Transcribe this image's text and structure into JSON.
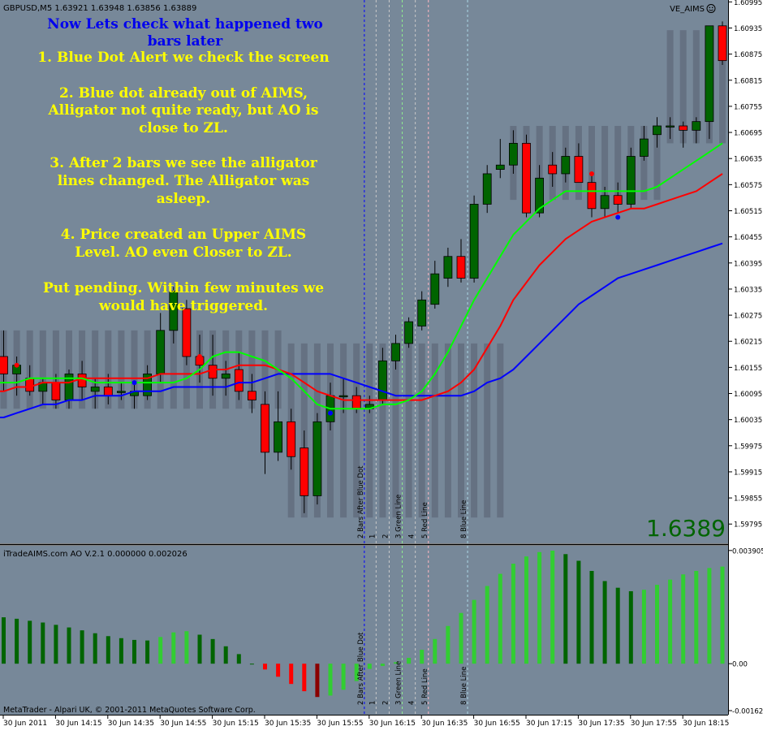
{
  "window": {
    "symbol_header": "GBPUSD,M5  1.63921 1.63948 1.63856 1.63889",
    "indicator_label": "VE_AIMS",
    "indicator_icon": "smiley-icon",
    "big_price": "1.6389",
    "ao_header": "iTradeAIMS.com AO  V.2.1 0.000000 0.002026",
    "copyright": "MetaTrader - Alpari UK, © 2001-2011 MetaQuotes Software Corp."
  },
  "annotation": {
    "title_lines": [
      "Now Lets check what happened two",
      "bars later"
    ],
    "body_lines": [
      "1. Blue Dot Alert we check the screen",
      "",
      "2. Blue dot already out of AIMS,",
      "Alligator not quite ready, but AO is",
      "close to ZL.",
      "",
      "3. After 2 bars we see the alligator",
      "lines changed. The Alligator was",
      "asleep.",
      "",
      "4. Price created an Upper AIMS",
      "Level. AO even Closer to ZL.",
      "",
      "Put pending. Within few minutes we",
      "would have triggered."
    ],
    "title_color": "#0000ee",
    "body_color": "#ffff00"
  },
  "colors": {
    "background": "#778899",
    "grid": "#8e9aaa",
    "bull_candle": "#006400",
    "bear_candle": "#ff0000",
    "aims_bar": "#5f6a7b",
    "jaw": "#0000ff",
    "teeth": "#ff0000",
    "lips": "#00ff00",
    "ao_up_light": "#32cd32",
    "ao_up_dark": "#006400",
    "ao_down_red": "#ff0000",
    "ao_down_dark": "#8b0000",
    "big_price": "#006400"
  },
  "chart_data": {
    "type": "candlestick",
    "symbol": "GBPUSD",
    "timeframe": "M5",
    "price_axis": {
      "range": [
        1.5976,
        1.6099
      ],
      "ticks": [
        "1.60995",
        "1.60935",
        "1.60875",
        "1.60815",
        "1.60755",
        "1.60695",
        "1.60635",
        "1.60575",
        "1.60515",
        "1.60455",
        "1.60395",
        "1.60335",
        "1.60275",
        "1.60215",
        "1.60155",
        "1.60095",
        "1.60035",
        "1.59975",
        "1.59915",
        "1.59855",
        "1.59795"
      ]
    },
    "time_axis": {
      "ticks": [
        "30 Jun 2011",
        "30 Jun 14:15",
        "30 Jun 14:35",
        "30 Jun 14:55",
        "30 Jun 15:15",
        "30 Jun 15:35",
        "30 Jun 15:55",
        "30 Jun 16:15",
        "30 Jun 16:35",
        "30 Jun 16:55",
        "30 Jun 17:15",
        "30 Jun 17:35",
        "30 Jun 17:55",
        "30 Jun 18:15"
      ]
    },
    "candles": [
      {
        "o": 1.6018,
        "h": 1.6024,
        "l": 1.601,
        "c": 1.6014
      },
      {
        "o": 1.6014,
        "h": 1.6018,
        "l": 1.6009,
        "c": 1.6016
      },
      {
        "o": 1.6013,
        "h": 1.6016,
        "l": 1.6009,
        "c": 1.601
      },
      {
        "o": 1.601,
        "h": 1.6013,
        "l": 1.6007,
        "c": 1.6012
      },
      {
        "o": 1.6012,
        "h": 1.6014,
        "l": 1.6006,
        "c": 1.6008
      },
      {
        "o": 1.6008,
        "h": 1.6015,
        "l": 1.6006,
        "c": 1.6014
      },
      {
        "o": 1.6014,
        "h": 1.6017,
        "l": 1.6008,
        "c": 1.6011
      },
      {
        "o": 1.601,
        "h": 1.6013,
        "l": 1.6006,
        "c": 1.6011
      },
      {
        "o": 1.6011,
        "h": 1.6014,
        "l": 1.6007,
        "c": 1.6009
      },
      {
        "o": 1.601,
        "h": 1.6012,
        "l": 1.6008,
        "c": 1.601
      },
      {
        "o": 1.6009,
        "h": 1.6012,
        "l": 1.6006,
        "c": 1.601
      },
      {
        "o": 1.6009,
        "h": 1.6016,
        "l": 1.6008,
        "c": 1.6014
      },
      {
        "o": 1.6014,
        "h": 1.6028,
        "l": 1.6012,
        "c": 1.6024
      },
      {
        "o": 1.6024,
        "h": 1.6034,
        "l": 1.6021,
        "c": 1.6033
      },
      {
        "o": 1.6029,
        "h": 1.6031,
        "l": 1.6016,
        "c": 1.6018
      },
      {
        "o": 1.6018,
        "h": 1.6023,
        "l": 1.6012,
        "c": 1.6016
      },
      {
        "o": 1.6016,
        "h": 1.6023,
        "l": 1.6009,
        "c": 1.6013
      },
      {
        "o": 1.6013,
        "h": 1.6017,
        "l": 1.6009,
        "c": 1.6014
      },
      {
        "o": 1.6015,
        "h": 1.6019,
        "l": 1.6008,
        "c": 1.601
      },
      {
        "o": 1.601,
        "h": 1.6014,
        "l": 1.6005,
        "c": 1.6008
      },
      {
        "o": 1.6007,
        "h": 1.601,
        "l": 1.5991,
        "c": 1.5996
      },
      {
        "o": 1.5996,
        "h": 1.601,
        "l": 1.5994,
        "c": 1.6003
      },
      {
        "o": 1.6003,
        "h": 1.6006,
        "l": 1.5992,
        "c": 1.5995
      },
      {
        "o": 1.5997,
        "h": 1.6001,
        "l": 1.5982,
        "c": 1.5986
      },
      {
        "o": 1.5986,
        "h": 1.6005,
        "l": 1.5984,
        "c": 1.6003
      },
      {
        "o": 1.6003,
        "h": 1.6012,
        "l": 1.6001,
        "c": 1.6009
      },
      {
        "o": 1.6009,
        "h": 1.6013,
        "l": 1.6005,
        "c": 1.6009
      },
      {
        "o": 1.6009,
        "h": 1.6011,
        "l": 1.6005,
        "c": 1.6006
      },
      {
        "o": 1.6006,
        "h": 1.6009,
        "l": 1.6005,
        "c": 1.6007
      },
      {
        "o": 1.6008,
        "h": 1.602,
        "l": 1.6007,
        "c": 1.6017
      },
      {
        "o": 1.6017,
        "h": 1.6023,
        "l": 1.6015,
        "c": 1.6021
      },
      {
        "o": 1.6021,
        "h": 1.6027,
        "l": 1.602,
        "c": 1.6026
      },
      {
        "o": 1.6025,
        "h": 1.6033,
        "l": 1.6024,
        "c": 1.6031
      },
      {
        "o": 1.603,
        "h": 1.604,
        "l": 1.6029,
        "c": 1.6037
      },
      {
        "o": 1.6036,
        "h": 1.6043,
        "l": 1.6034,
        "c": 1.6041
      },
      {
        "o": 1.6041,
        "h": 1.6045,
        "l": 1.6035,
        "c": 1.6036
      },
      {
        "o": 1.6036,
        "h": 1.6055,
        "l": 1.6035,
        "c": 1.6053
      },
      {
        "o": 1.6053,
        "h": 1.6062,
        "l": 1.6051,
        "c": 1.606
      },
      {
        "o": 1.6061,
        "h": 1.6068,
        "l": 1.6059,
        "c": 1.6062
      },
      {
        "o": 1.6062,
        "h": 1.607,
        "l": 1.606,
        "c": 1.6067
      },
      {
        "o": 1.6067,
        "h": 1.6069,
        "l": 1.605,
        "c": 1.6051
      },
      {
        "o": 1.6051,
        "h": 1.6062,
        "l": 1.605,
        "c": 1.6059
      },
      {
        "o": 1.6062,
        "h": 1.6065,
        "l": 1.6057,
        "c": 1.606
      },
      {
        "o": 1.606,
        "h": 1.6066,
        "l": 1.6058,
        "c": 1.6064
      },
      {
        "o": 1.6064,
        "h": 1.6067,
        "l": 1.6058,
        "c": 1.6058
      },
      {
        "o": 1.6058,
        "h": 1.606,
        "l": 1.605,
        "c": 1.6052
      },
      {
        "o": 1.6052,
        "h": 1.6057,
        "l": 1.605,
        "c": 1.6055
      },
      {
        "o": 1.6055,
        "h": 1.6058,
        "l": 1.6051,
        "c": 1.6053
      },
      {
        "o": 1.6053,
        "h": 1.6066,
        "l": 1.6052,
        "c": 1.6064
      },
      {
        "o": 1.6064,
        "h": 1.6071,
        "l": 1.6063,
        "c": 1.6068
      },
      {
        "o": 1.6069,
        "h": 1.6073,
        "l": 1.6066,
        "c": 1.6071
      },
      {
        "o": 1.6071,
        "h": 1.6073,
        "l": 1.6068,
        "c": 1.6071
      },
      {
        "o": 1.6071,
        "h": 1.6072,
        "l": 1.6066,
        "c": 1.607
      },
      {
        "o": 1.607,
        "h": 1.6073,
        "l": 1.6067,
        "c": 1.6072
      },
      {
        "o": 1.6072,
        "h": 1.6094,
        "l": 1.6068,
        "c": 1.6094
      },
      {
        "o": 1.6094,
        "h": 1.6095,
        "l": 1.6085,
        "c": 1.6086
      }
    ],
    "aims_levels": [
      {
        "from": 0,
        "to": 21,
        "low": 1.6006,
        "high": 1.6024
      },
      {
        "from": 22,
        "to": 38,
        "low": 1.5981,
        "high": 1.6021
      },
      {
        "from": 39,
        "to": 50,
        "low": 1.6054,
        "high": 1.6071
      },
      {
        "from": 51,
        "to": 55,
        "low": 1.6067,
        "high": 1.6093
      }
    ],
    "alligator": {
      "jaw": [
        1.6004,
        1.6005,
        1.6006,
        1.6007,
        1.6007,
        1.6008,
        1.6008,
        1.6009,
        1.6009,
        1.6009,
        1.601,
        1.601,
        1.601,
        1.6011,
        1.6011,
        1.6011,
        1.6011,
        1.6011,
        1.6012,
        1.6012,
        1.6013,
        1.6014,
        1.6014,
        1.6014,
        1.6014,
        1.6014,
        1.6013,
        1.6012,
        1.6011,
        1.601,
        1.6009,
        1.6009,
        1.6009,
        1.6009,
        1.6009,
        1.6009,
        1.601,
        1.6012,
        1.6013,
        1.6015,
        1.6018,
        1.6021,
        1.6024,
        1.6027,
        1.603,
        1.6032,
        1.6034,
        1.6036,
        1.6037,
        1.6038,
        1.6039,
        1.604,
        1.6041,
        1.6042,
        1.6043,
        1.6044
      ],
      "teeth": [
        1.601,
        1.6011,
        1.6011,
        1.6012,
        1.6012,
        1.6012,
        1.6013,
        1.6013,
        1.6013,
        1.6013,
        1.6013,
        1.6013,
        1.6014,
        1.6014,
        1.6014,
        1.6014,
        1.6015,
        1.6015,
        1.6016,
        1.6016,
        1.6016,
        1.6015,
        1.6014,
        1.6012,
        1.601,
        1.6009,
        1.6008,
        1.6008,
        1.6008,
        1.6008,
        1.6008,
        1.6008,
        1.6008,
        1.6009,
        1.601,
        1.6012,
        1.6015,
        1.602,
        1.6025,
        1.6031,
        1.6035,
        1.6039,
        1.6042,
        1.6045,
        1.6047,
        1.6049,
        1.605,
        1.6051,
        1.6052,
        1.6052,
        1.6053,
        1.6054,
        1.6055,
        1.6056,
        1.6058,
        1.606
      ],
      "lips": [
        1.6012,
        1.6012,
        1.6013,
        1.6013,
        1.6013,
        1.6013,
        1.6013,
        1.6012,
        1.6012,
        1.6012,
        1.6012,
        1.6012,
        1.6012,
        1.6012,
        1.6013,
        1.6015,
        1.6018,
        1.6019,
        1.6019,
        1.6018,
        1.6017,
        1.6015,
        1.6013,
        1.601,
        1.6007,
        1.6006,
        1.6006,
        1.6006,
        1.6006,
        1.6007,
        1.6007,
        1.6008,
        1.601,
        1.6014,
        1.6019,
        1.6025,
        1.6031,
        1.6036,
        1.6041,
        1.6046,
        1.6049,
        1.6052,
        1.6054,
        1.6056,
        1.6056,
        1.6056,
        1.6056,
        1.6056,
        1.6056,
        1.6056,
        1.6057,
        1.6059,
        1.6061,
        1.6063,
        1.6065,
        1.6067
      ]
    },
    "dots": [
      {
        "bar": 1,
        "price": 1.6016,
        "color": "#ff0000"
      },
      {
        "bar": 10,
        "price": 1.6012,
        "color": "#0000ff"
      },
      {
        "bar": 15,
        "price": 1.6018,
        "color": "#ff0000"
      },
      {
        "bar": 25,
        "price": 1.6005,
        "color": "#0000ff"
      },
      {
        "bar": 45,
        "price": 1.606,
        "color": "#ff0000"
      },
      {
        "bar": 47,
        "price": 1.605,
        "color": "#0000ff"
      }
    ],
    "vlines": [
      {
        "bar": 27.6,
        "label": "2 Bars After Blue Dot",
        "color": "#0000ff"
      },
      {
        "bar": 28.5,
        "label": "1",
        "color": "#c8c8c8"
      },
      {
        "bar": 29.5,
        "label": "2",
        "color": "#c8c8c8"
      },
      {
        "bar": 30.5,
        "label": "3 Green Line",
        "color": "#90ee90"
      },
      {
        "bar": 31.5,
        "label": "4",
        "color": "#c8c8c8"
      },
      {
        "bar": 32.5,
        "label": "5 Red Line",
        "color": "#ffb6c1"
      },
      {
        "bar": 35.5,
        "label": "8 Blue Line",
        "color": "#add8e6"
      }
    ],
    "ao": {
      "ylim": [
        -0.00162,
        0.0039
      ],
      "ticks": [
        "0.003905",
        "0.00",
        "-0.00162"
      ],
      "values": [
        0.0016,
        0.00155,
        0.00148,
        0.00142,
        0.00134,
        0.00125,
        0.00115,
        0.00105,
        0.00095,
        0.00088,
        0.00082,
        0.0008,
        0.00092,
        0.00108,
        0.00112,
        0.001,
        0.00085,
        0.0006,
        0.00033,
        0.0,
        -0.0002,
        -0.00045,
        -0.0007,
        -0.00095,
        -0.00115,
        -0.0011,
        -0.0009,
        -0.0006,
        -0.00018,
        -8e-05,
        5e-05,
        0.0002,
        0.00048,
        0.00085,
        0.0013,
        0.00175,
        0.0022,
        0.00268,
        0.0031,
        0.00345,
        0.0037,
        0.00385,
        0.0039,
        0.00378,
        0.00355,
        0.0032,
        0.00285,
        0.00262,
        0.0025,
        0.00255,
        0.00272,
        0.0029,
        0.00308,
        0.0032,
        0.0033,
        0.00335
      ],
      "colors": [
        "up_dark",
        "down",
        "down",
        "down",
        "down",
        "down",
        "down",
        "down",
        "down",
        "down",
        "down",
        "down",
        "up",
        "up",
        "up",
        "down",
        "down",
        "down",
        "down",
        "down",
        "down",
        "down",
        "down",
        "down",
        "down",
        "up",
        "up",
        "up",
        "up",
        "up",
        "up",
        "up",
        "up",
        "up",
        "up",
        "up",
        "up",
        "up",
        "up",
        "up",
        "up",
        "up",
        "up",
        "down",
        "down",
        "down",
        "down",
        "down",
        "down",
        "up",
        "up",
        "up",
        "up",
        "up",
        "up",
        "up"
      ]
    }
  }
}
